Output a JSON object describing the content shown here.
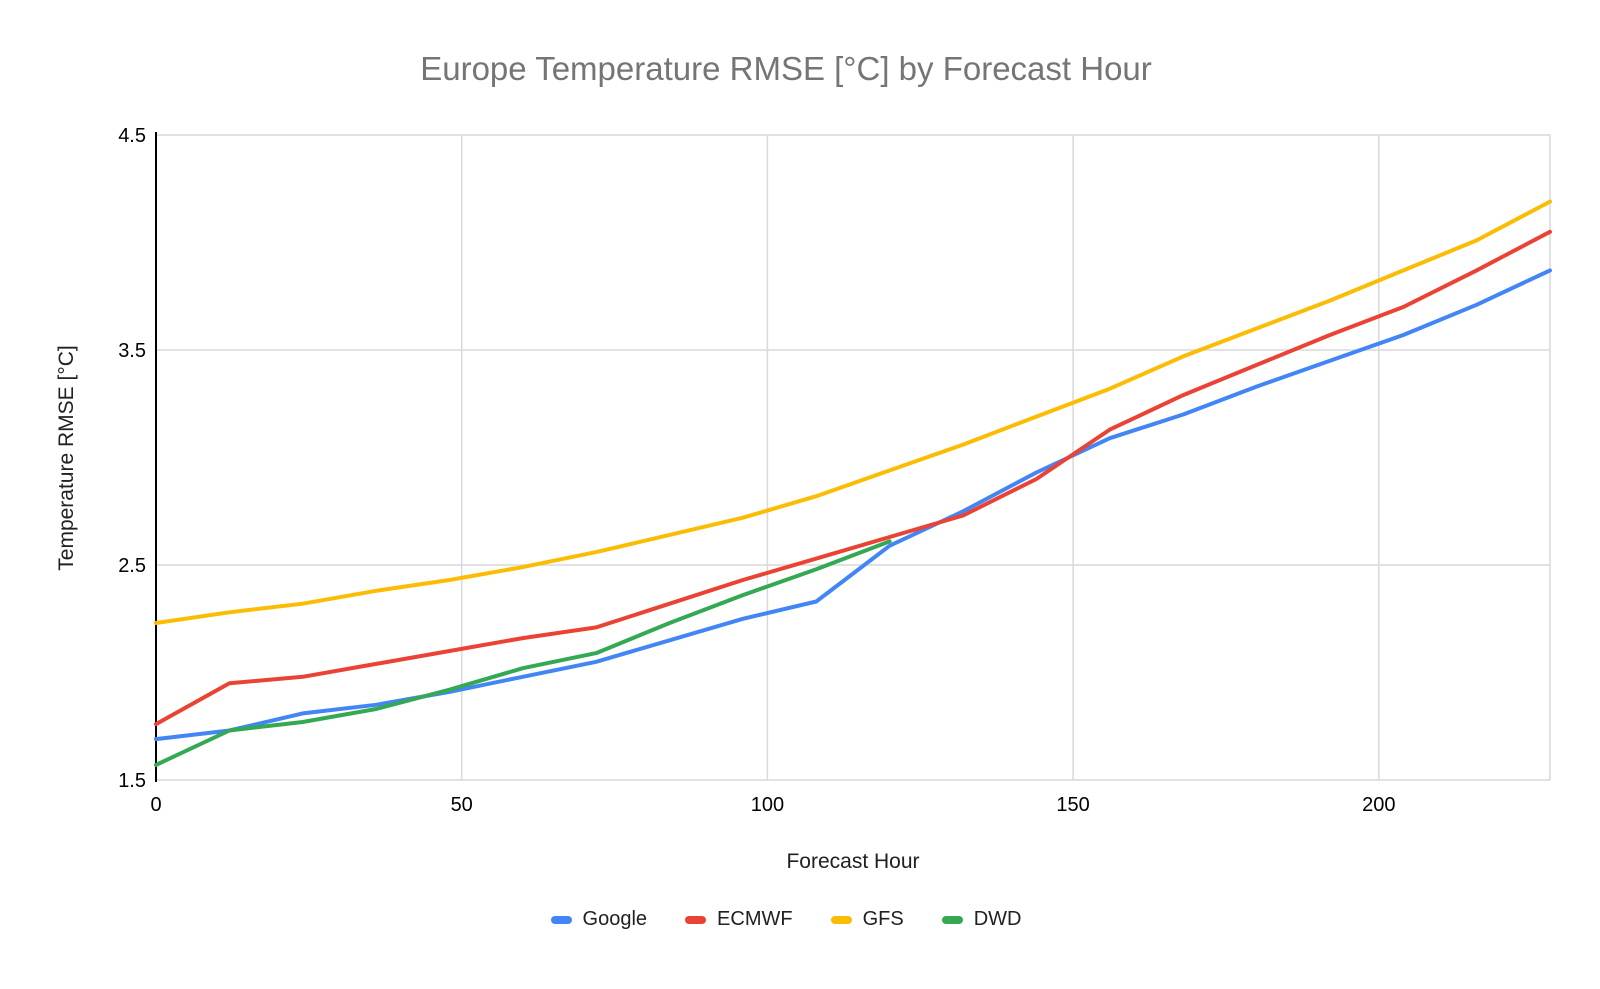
{
  "chart_data": {
    "type": "line",
    "title": "Europe Temperature RMSE [°C] by Forecast Hour",
    "xlabel": "Forecast Hour",
    "ylabel": "Temperature RMSE [°C]",
    "xlim": [
      0,
      228
    ],
    "ylim": [
      1.5,
      4.5
    ],
    "x_ticks": [
      0,
      50,
      100,
      150,
      200
    ],
    "y_ticks": [
      1.5,
      2.5,
      3.5,
      4.5
    ],
    "grid": true,
    "legend_position": "bottom",
    "x": [
      0,
      12,
      24,
      36,
      48,
      60,
      72,
      84,
      96,
      108,
      120,
      132,
      144,
      156,
      168,
      180,
      192,
      204,
      216,
      228
    ],
    "series": [
      {
        "name": "Google",
        "color": "#4285F4",
        "values": [
          1.69,
          1.73,
          1.81,
          1.85,
          1.91,
          1.98,
          2.05,
          2.15,
          2.25,
          2.33,
          2.59,
          2.75,
          2.93,
          3.09,
          3.2,
          3.33,
          3.45,
          3.57,
          3.71,
          3.87
        ]
      },
      {
        "name": "ECMWF",
        "color": "#EA4335",
        "values": [
          1.76,
          1.95,
          1.98,
          2.04,
          2.1,
          2.16,
          2.21,
          2.32,
          2.43,
          2.53,
          2.63,
          2.73,
          2.9,
          3.13,
          3.29,
          3.43,
          3.57,
          3.7,
          3.87,
          4.05
        ]
      },
      {
        "name": "GFS",
        "color": "#FBBC04",
        "values": [
          2.23,
          2.28,
          2.32,
          2.38,
          2.43,
          2.49,
          2.56,
          2.64,
          2.72,
          2.82,
          2.94,
          3.06,
          3.19,
          3.32,
          3.47,
          3.6,
          3.73,
          3.87,
          4.01,
          4.19
        ]
      },
      {
        "name": "DWD",
        "color": "#34A853",
        "values": [
          1.57,
          1.73,
          1.77,
          1.83,
          1.92,
          2.02,
          2.09,
          2.23,
          2.36,
          2.48,
          2.61,
          null,
          null,
          null,
          null,
          null,
          null,
          null,
          null,
          null
        ]
      }
    ],
    "colors": {
      "background": "#ffffff",
      "grid": "#d9d9d9",
      "axis_line": "#000000",
      "title_text": "#757575",
      "axis_title_text": "#202124",
      "tick_text": "#000000"
    }
  }
}
